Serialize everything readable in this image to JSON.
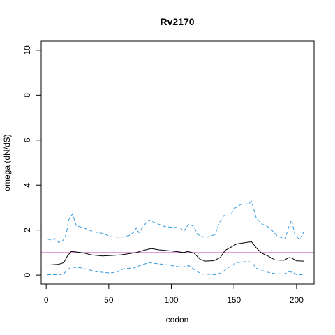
{
  "chart_data": {
    "type": "line",
    "title": "Rv2170",
    "xlabel": "codon",
    "ylabel": "omega (dN/dS)",
    "xlim": [
      -4,
      214
    ],
    "ylim": [
      -0.4,
      10.4
    ],
    "x_ticks": [
      0,
      50,
      100,
      150,
      200
    ],
    "x_tick_labels": [
      "0",
      "50",
      "100",
      "150",
      "200"
    ],
    "y_ticks": [
      0,
      2,
      4,
      6,
      8,
      10
    ],
    "y_tick_labels": [
      "0",
      "2",
      "4",
      "6",
      "8",
      "10"
    ],
    "grid": false,
    "reference_line": {
      "y": 1,
      "color": "#cc66cc"
    },
    "series": [
      {
        "role": "estimate",
        "style": "solid",
        "color": "#000000",
        "points": [
          [
            1,
            0.45
          ],
          [
            5,
            0.46
          ],
          [
            10,
            0.48
          ],
          [
            14,
            0.55
          ],
          [
            17,
            0.85
          ],
          [
            20,
            1.05
          ],
          [
            25,
            1.02
          ],
          [
            30,
            0.98
          ],
          [
            36,
            0.9
          ],
          [
            45,
            0.85
          ],
          [
            55,
            0.88
          ],
          [
            60,
            0.9
          ],
          [
            66,
            0.95
          ],
          [
            72,
            1.0
          ],
          [
            78,
            1.1
          ],
          [
            84,
            1.18
          ],
          [
            90,
            1.12
          ],
          [
            100,
            1.07
          ],
          [
            106,
            1.03
          ],
          [
            110,
            1.0
          ],
          [
            113,
            1.05
          ],
          [
            118,
            0.98
          ],
          [
            123,
            0.7
          ],
          [
            127,
            0.62
          ],
          [
            134,
            0.64
          ],
          [
            139,
            0.78
          ],
          [
            143,
            1.1
          ],
          [
            148,
            1.25
          ],
          [
            152,
            1.38
          ],
          [
            160,
            1.45
          ],
          [
            164,
            1.48
          ],
          [
            168,
            1.2
          ],
          [
            172,
            0.98
          ],
          [
            177,
            0.85
          ],
          [
            183,
            0.67
          ],
          [
            190,
            0.66
          ],
          [
            194,
            0.78
          ],
          [
            196,
            0.76
          ],
          [
            200,
            0.63
          ],
          [
            206,
            0.62
          ]
        ]
      },
      {
        "role": "upper bound",
        "style": "dashed",
        "color": "#3399dd",
        "points": [
          [
            1,
            1.6
          ],
          [
            4,
            1.55
          ],
          [
            7,
            1.62
          ],
          [
            10,
            1.45
          ],
          [
            13,
            1.5
          ],
          [
            16,
            1.8
          ],
          [
            18,
            2.45
          ],
          [
            21,
            2.72
          ],
          [
            24,
            2.2
          ],
          [
            30,
            2.1
          ],
          [
            38,
            1.92
          ],
          [
            45,
            1.85
          ],
          [
            52,
            1.7
          ],
          [
            60,
            1.68
          ],
          [
            66,
            1.75
          ],
          [
            70,
            1.9
          ],
          [
            72,
            2.1
          ],
          [
            74,
            1.88
          ],
          [
            78,
            2.2
          ],
          [
            82,
            2.45
          ],
          [
            88,
            2.3
          ],
          [
            95,
            2.15
          ],
          [
            103,
            2.12
          ],
          [
            107,
            2.1
          ],
          [
            110,
            1.95
          ],
          [
            114,
            2.28
          ],
          [
            118,
            2.15
          ],
          [
            121,
            1.8
          ],
          [
            127,
            1.65
          ],
          [
            135,
            1.8
          ],
          [
            138,
            2.3
          ],
          [
            142,
            2.65
          ],
          [
            147,
            2.62
          ],
          [
            150,
            2.95
          ],
          [
            155,
            3.12
          ],
          [
            162,
            3.18
          ],
          [
            164,
            3.28
          ],
          [
            168,
            2.5
          ],
          [
            173,
            2.25
          ],
          [
            178,
            2.12
          ],
          [
            185,
            1.72
          ],
          [
            191,
            1.6
          ],
          [
            193,
            2.02
          ],
          [
            196,
            2.45
          ],
          [
            199,
            1.72
          ],
          [
            203,
            1.58
          ],
          [
            206,
            1.96
          ]
        ]
      },
      {
        "role": "lower bound",
        "style": "dashed",
        "color": "#3399dd",
        "points": [
          [
            1,
            0.02
          ],
          [
            10,
            0.02
          ],
          [
            14,
            0.05
          ],
          [
            17,
            0.25
          ],
          [
            20,
            0.35
          ],
          [
            27,
            0.33
          ],
          [
            33,
            0.25
          ],
          [
            40,
            0.15
          ],
          [
            50,
            0.1
          ],
          [
            56,
            0.12
          ],
          [
            62,
            0.28
          ],
          [
            70,
            0.32
          ],
          [
            76,
            0.45
          ],
          [
            82,
            0.55
          ],
          [
            90,
            0.5
          ],
          [
            100,
            0.43
          ],
          [
            108,
            0.35
          ],
          [
            114,
            0.42
          ],
          [
            118,
            0.25
          ],
          [
            124,
            0.05
          ],
          [
            135,
            0.02
          ],
          [
            140,
            0.1
          ],
          [
            146,
            0.35
          ],
          [
            152,
            0.55
          ],
          [
            160,
            0.6
          ],
          [
            164,
            0.58
          ],
          [
            168,
            0.3
          ],
          [
            175,
            0.15
          ],
          [
            183,
            0.06
          ],
          [
            190,
            0.05
          ],
          [
            194,
            0.15
          ],
          [
            197,
            0.12
          ],
          [
            200,
            0.02
          ],
          [
            206,
            0.02
          ]
        ]
      }
    ]
  }
}
